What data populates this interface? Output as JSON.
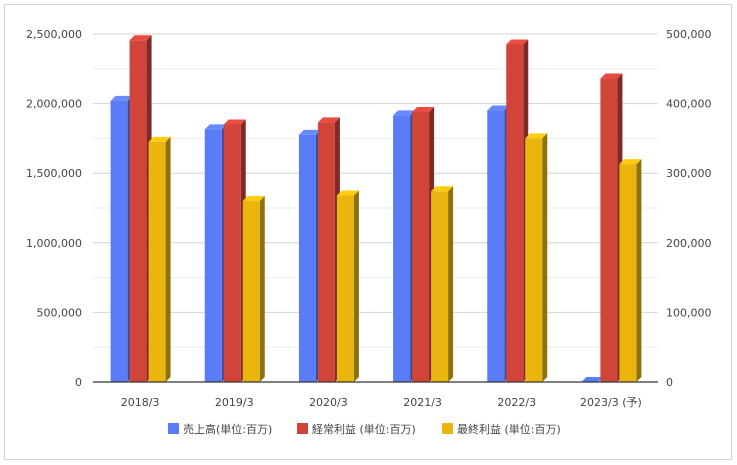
{
  "chart_data": {
    "type": "bar",
    "style": "3d-clustered",
    "categories": [
      "2018/3",
      "2019/3",
      "2020/3",
      "2021/3",
      "2022/3",
      "2023/3 (予)"
    ],
    "series": [
      {
        "name": "売上高(単位:百万)",
        "axis": "left",
        "color": "#5b7cf7",
        "values": [
          2020000,
          1815000,
          1775000,
          1915000,
          1950000,
          0
        ]
      },
      {
        "name": "経常利益 (単位:百万)",
        "axis": "right",
        "color": "#d0443a",
        "values": [
          491000,
          370000,
          373000,
          388000,
          485000,
          436000
        ]
      },
      {
        "name": "最終利益 (単位:百万)",
        "axis": "right",
        "color": "#e9b60f",
        "values": [
          345000,
          260000,
          268000,
          274000,
          350000,
          313000
        ]
      }
    ],
    "y_left": {
      "min": 0,
      "max": 2500000,
      "ticks": [
        "0",
        "500,000",
        "1,000,000",
        "1,500,000",
        "2,000,000",
        "2,500,000"
      ]
    },
    "y_right": {
      "min": 0,
      "max": 500000,
      "ticks": [
        "0",
        "100,000",
        "200,000",
        "300,000",
        "400,000",
        "500,000"
      ]
    },
    "grid": true,
    "legend_position": "bottom"
  }
}
